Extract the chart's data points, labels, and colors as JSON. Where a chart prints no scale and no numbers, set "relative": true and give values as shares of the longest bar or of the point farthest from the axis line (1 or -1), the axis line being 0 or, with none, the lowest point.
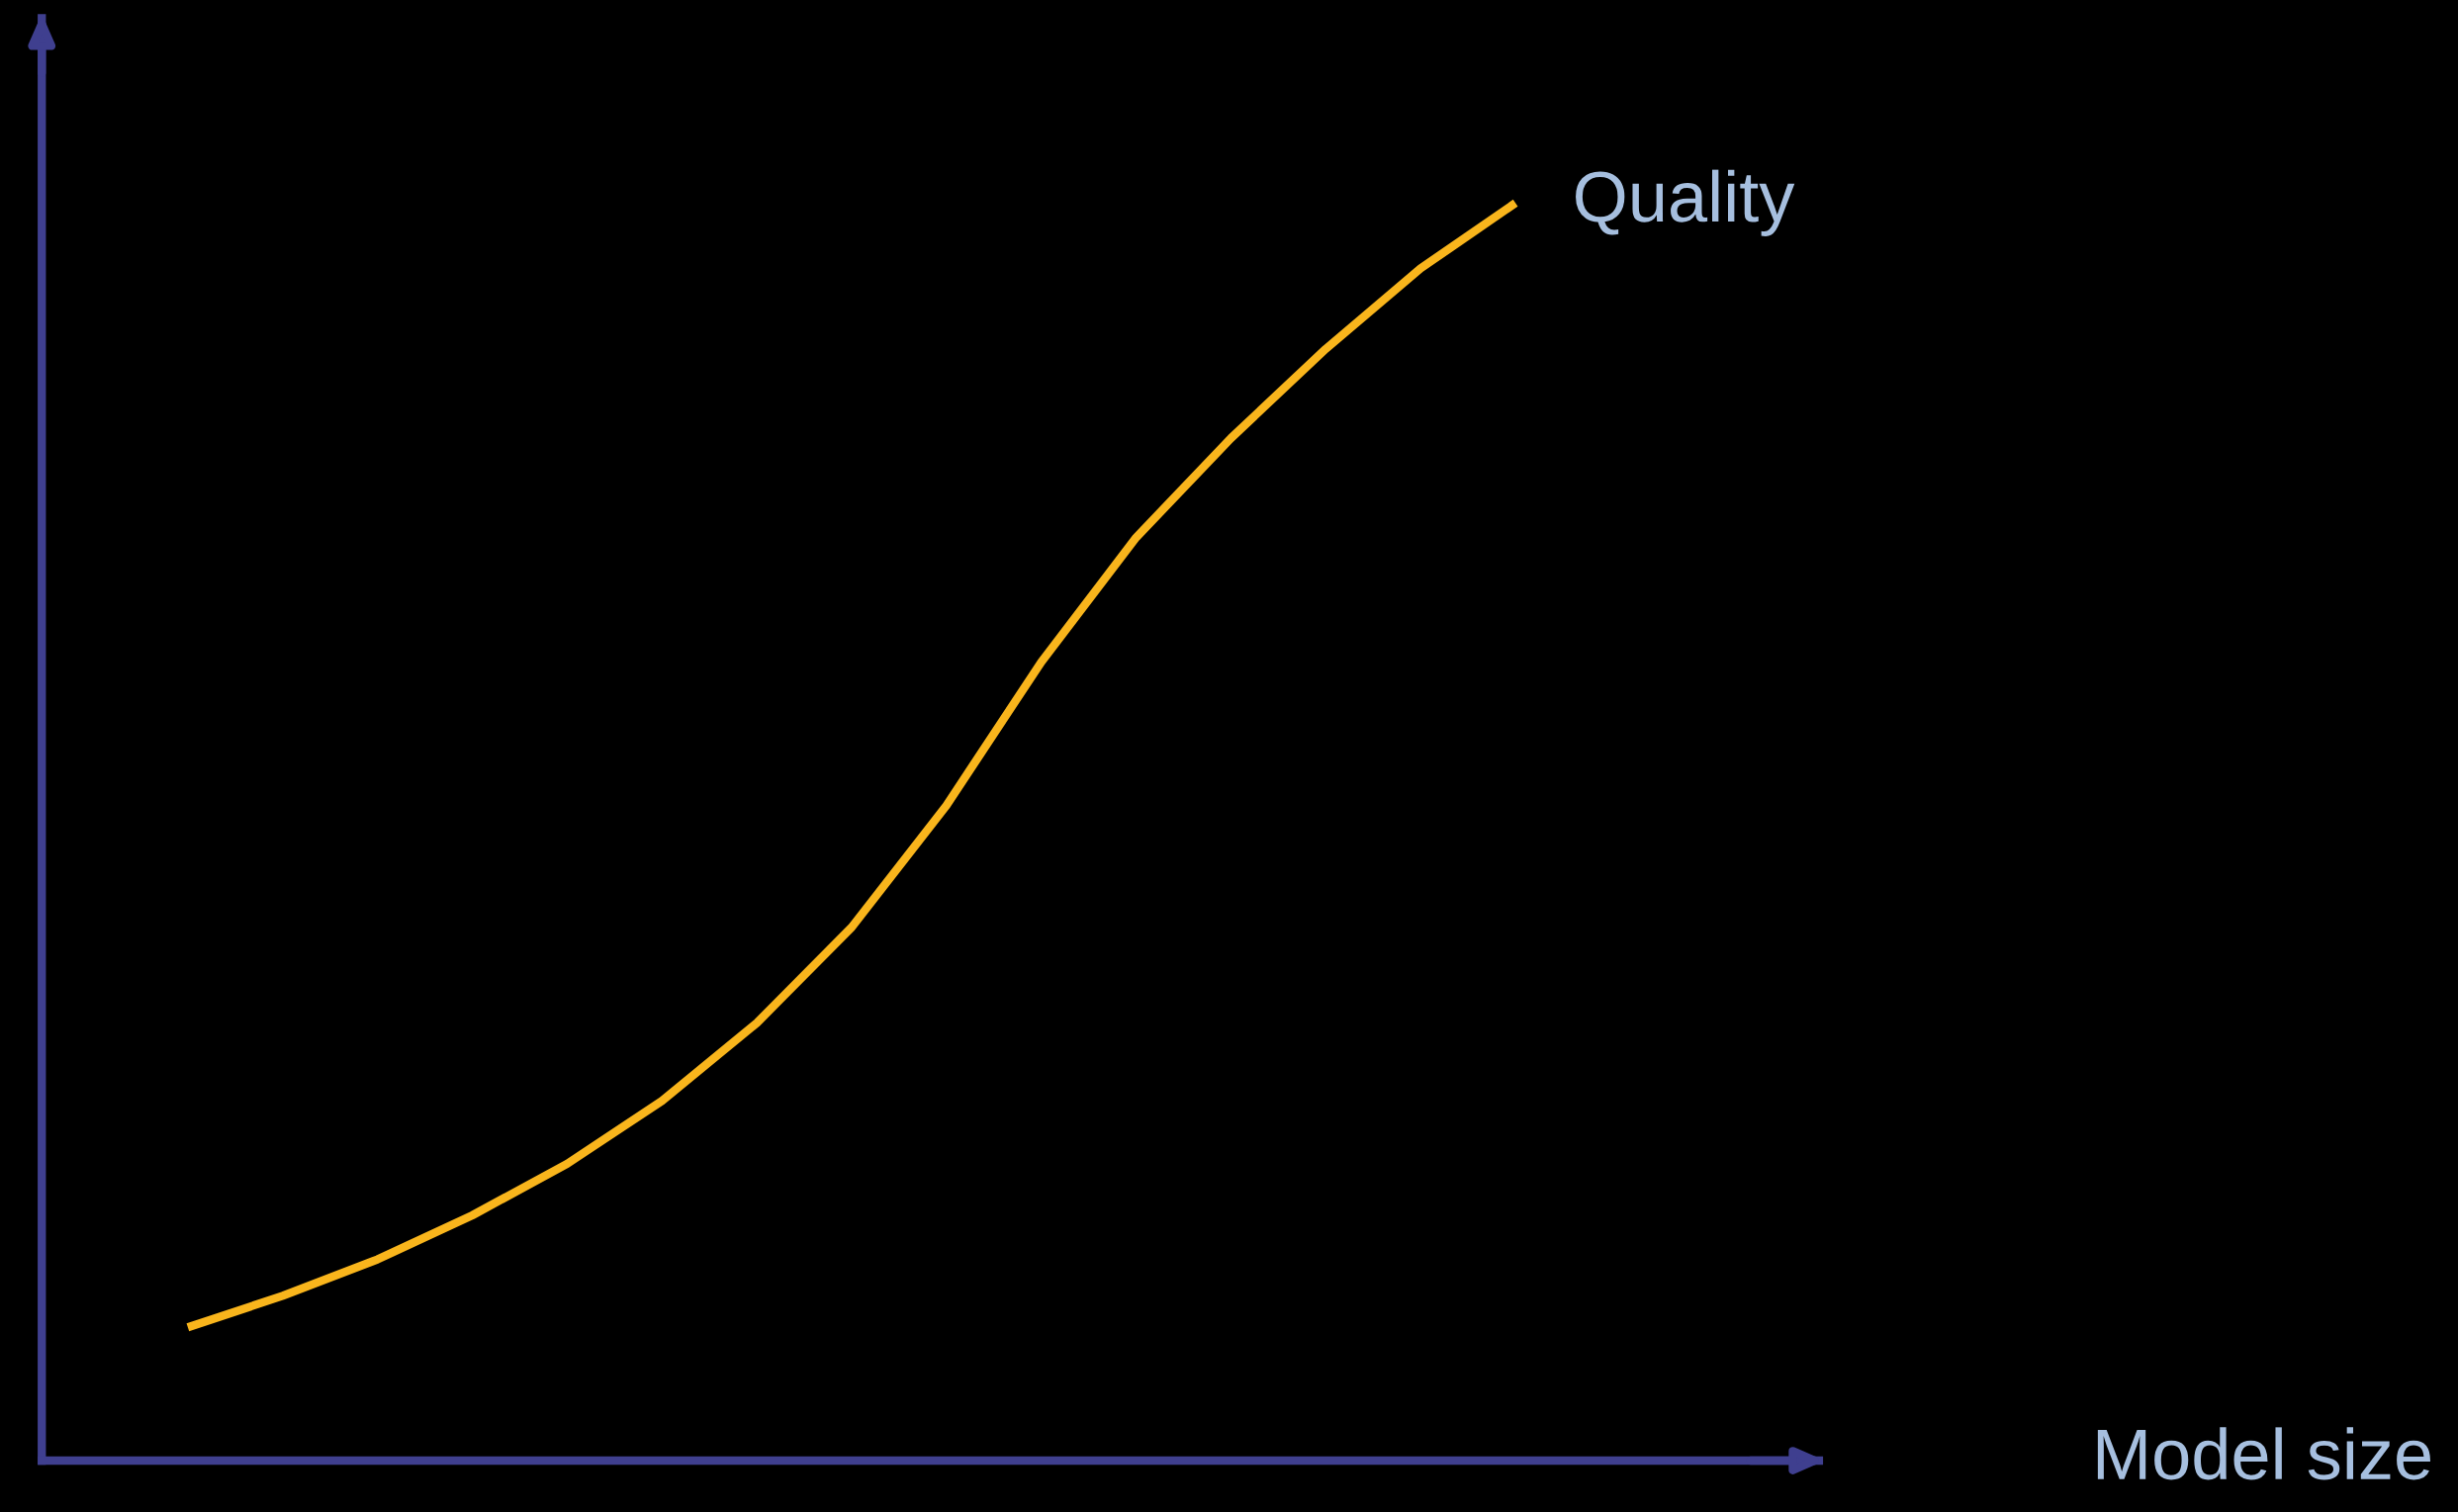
{
  "chart_data": {
    "type": "line",
    "relative": true,
    "annotations": [
      "Model size"
    ],
    "categories": [
      null,
      null,
      null,
      null,
      null,
      null,
      null,
      null,
      null,
      null,
      null,
      null,
      null,
      null,
      null
    ],
    "series": [
      {
        "name": "Quality",
        "color": "#f9b51c",
        "values": [
          0.106,
          0.131,
          0.16,
          0.195,
          0.236,
          0.286,
          0.348,
          0.424,
          0.521,
          0.635,
          0.734,
          0.813,
          0.884,
          0.948,
          1.0
        ]
      }
    ],
    "grid": false,
    "legend": false,
    "marker": "none",
    "line_style": "solid"
  }
}
